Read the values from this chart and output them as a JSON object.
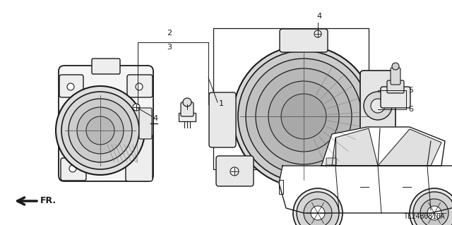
{
  "bg_color": "#ffffff",
  "diagram_code": "TL24B0810A",
  "fr_label": "FR.",
  "black": "#1a1a1a",
  "gray": "#777777",
  "lgray": "#bbbbbb",
  "dgray": "#555555",
  "figsize": [
    6.4,
    3.19
  ],
  "dpi": 100,
  "xlim": [
    0,
    640
  ],
  "ylim": [
    0,
    319
  ]
}
